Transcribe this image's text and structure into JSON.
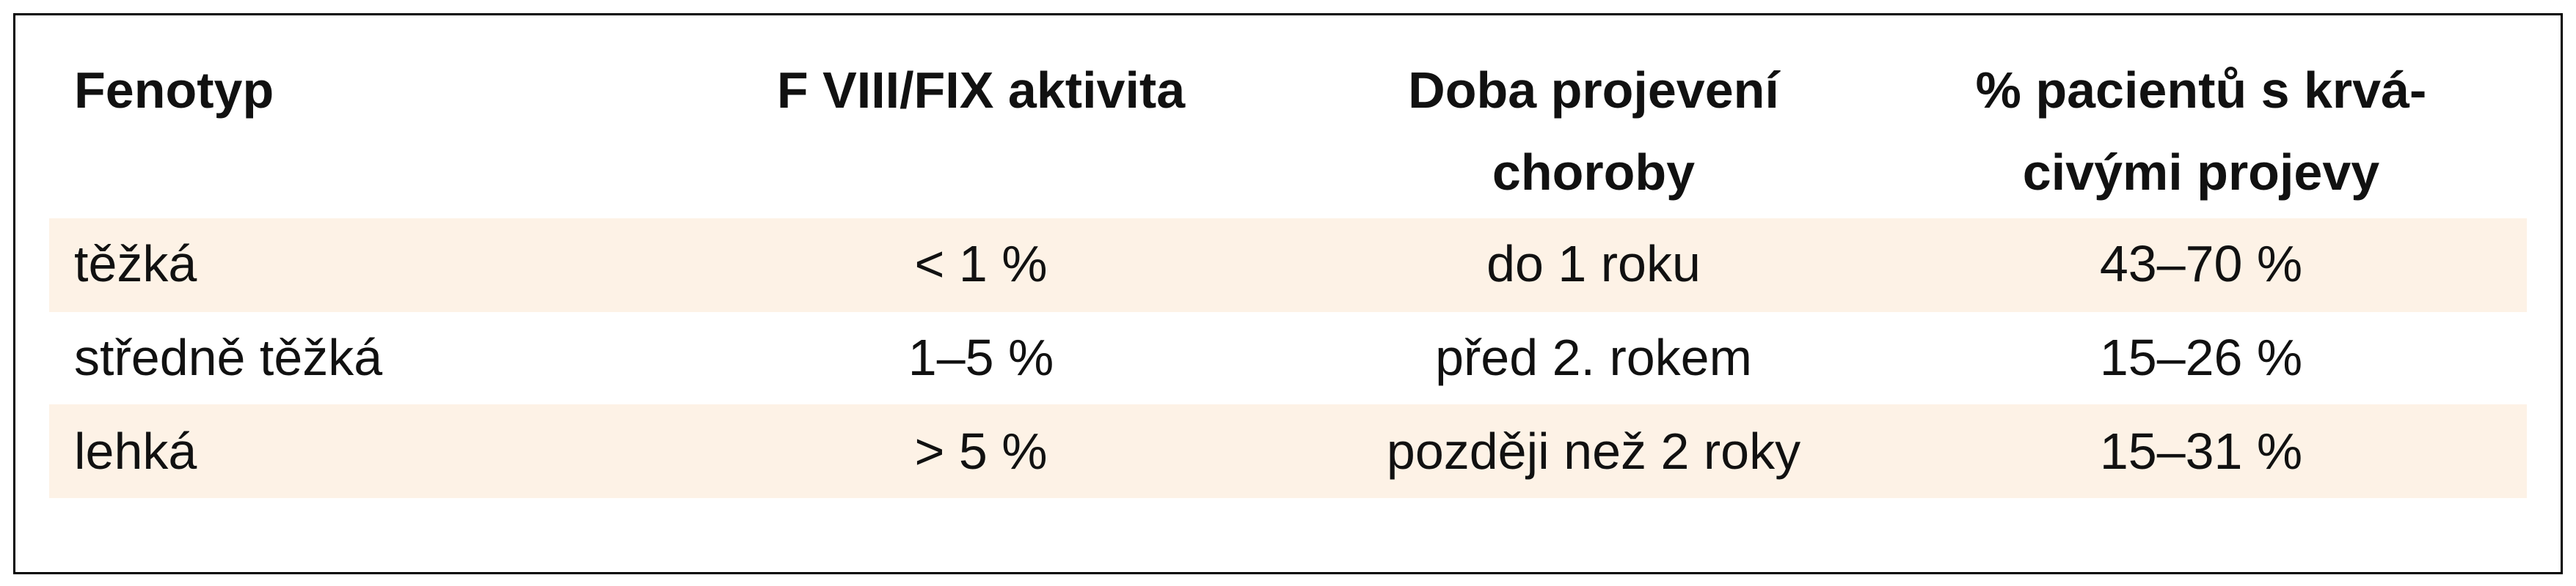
{
  "table": {
    "header": [
      [
        "Fenotyp"
      ],
      [
        "F VIII/FIX aktivita"
      ],
      [
        "Doba projevení",
        "choroby"
      ],
      [
        "% pacientů s krvá-",
        "civými projevy"
      ]
    ],
    "rows": [
      [
        "těžká",
        "< 1 %",
        "do 1 roku",
        "43–70 %"
      ],
      [
        "středně těžká",
        "1–5 %",
        "před 2. rokem",
        "15–26 %"
      ],
      [
        "lehká",
        "> 5 %",
        "později než 2 roky",
        "15–31 %"
      ]
    ]
  }
}
